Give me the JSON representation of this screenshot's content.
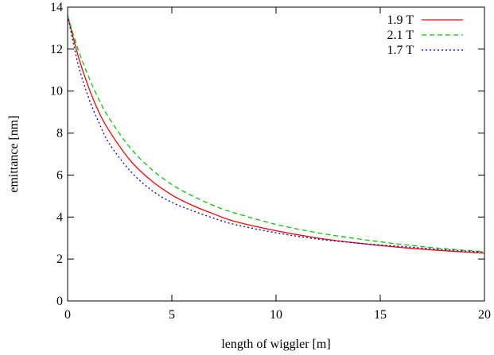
{
  "chart_data": {
    "type": "line",
    "title": "",
    "xlabel": "length of wiggler [m]",
    "ylabel": "emittance [nm]",
    "xlim": [
      0,
      20
    ],
    "ylim": [
      0,
      14
    ],
    "xticks": [
      0,
      5,
      10,
      15,
      20
    ],
    "yticks": [
      0,
      2,
      4,
      6,
      8,
      10,
      12,
      14
    ],
    "xtick_labels": [
      "0",
      "5",
      "10",
      "15",
      "20"
    ],
    "ytick_labels": [
      "0",
      "2",
      "4",
      "6",
      "8",
      "10",
      "12",
      "14"
    ],
    "grid": false,
    "legend_position": "top-right",
    "series": [
      {
        "name": "1.9 T",
        "color": "#ff0000",
        "dash": "solid",
        "x": [
          0,
          0.5,
          1,
          1.5,
          2,
          3,
          4,
          5,
          6,
          7,
          8,
          10,
          12,
          14,
          16,
          18,
          20
        ],
        "y": [
          13.6,
          11.7,
          10.2,
          9.0,
          8.1,
          6.7,
          5.75,
          5.05,
          4.55,
          4.15,
          3.8,
          3.35,
          3.0,
          2.75,
          2.55,
          2.4,
          2.28
        ]
      },
      {
        "name": "2.1 T",
        "color": "#00cc00",
        "dash": "dashed",
        "x": [
          0,
          0.5,
          1,
          1.5,
          2,
          3,
          4,
          5,
          6,
          7,
          8,
          10,
          12,
          14,
          16,
          18,
          20
        ],
        "y": [
          13.6,
          12.0,
          10.7,
          9.6,
          8.7,
          7.3,
          6.3,
          5.55,
          5.0,
          4.55,
          4.2,
          3.65,
          3.25,
          2.95,
          2.7,
          2.5,
          2.35
        ]
      },
      {
        "name": "1.7 T",
        "color": "#0000cc",
        "dash": "dotted",
        "x": [
          0,
          0.5,
          1,
          1.5,
          2,
          3,
          4,
          5,
          6,
          7,
          8,
          10,
          12,
          14,
          16,
          18,
          20
        ],
        "y": [
          13.6,
          11.3,
          9.7,
          8.5,
          7.5,
          6.2,
          5.3,
          4.7,
          4.3,
          3.95,
          3.65,
          3.25,
          2.95,
          2.75,
          2.6,
          2.45,
          2.33
        ]
      }
    ]
  }
}
